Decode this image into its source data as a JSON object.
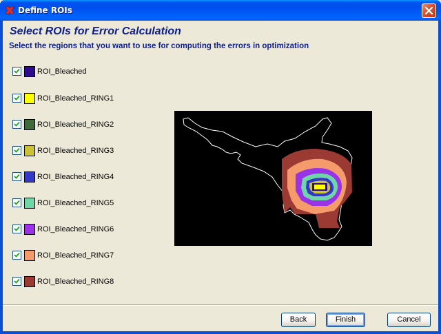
{
  "window": {
    "title": "Define ROIs"
  },
  "header": {
    "heading": "Select ROIs for Error Calculation",
    "subheading": "Select the regions that you want to use for computing the errors in optimization"
  },
  "rois": [
    {
      "label": "ROI_Bleached",
      "color": "#2e0b8e",
      "checked": true
    },
    {
      "label": "ROI_Bleached_RING1",
      "color": "#ffff00",
      "checked": true
    },
    {
      "label": "ROI_Bleached_RING2",
      "color": "#3d6b3a",
      "checked": true
    },
    {
      "label": "ROI_Bleached_RING3",
      "color": "#c9c236",
      "checked": true
    },
    {
      "label": "ROI_Bleached_RING4",
      "color": "#3438c8",
      "checked": true
    },
    {
      "label": "ROI_Bleached_RING5",
      "color": "#6fd7a7",
      "checked": true
    },
    {
      "label": "ROI_Bleached_RING6",
      "color": "#9a33e8",
      "checked": true
    },
    {
      "label": "ROI_Bleached_RING7",
      "color": "#f59a6b",
      "checked": true
    },
    {
      "label": "ROI_Bleached_RING8",
      "color": "#9a3a33",
      "checked": true
    }
  ],
  "buttons": {
    "back": "Back",
    "finish": "Finish",
    "cancel": "Cancel"
  }
}
